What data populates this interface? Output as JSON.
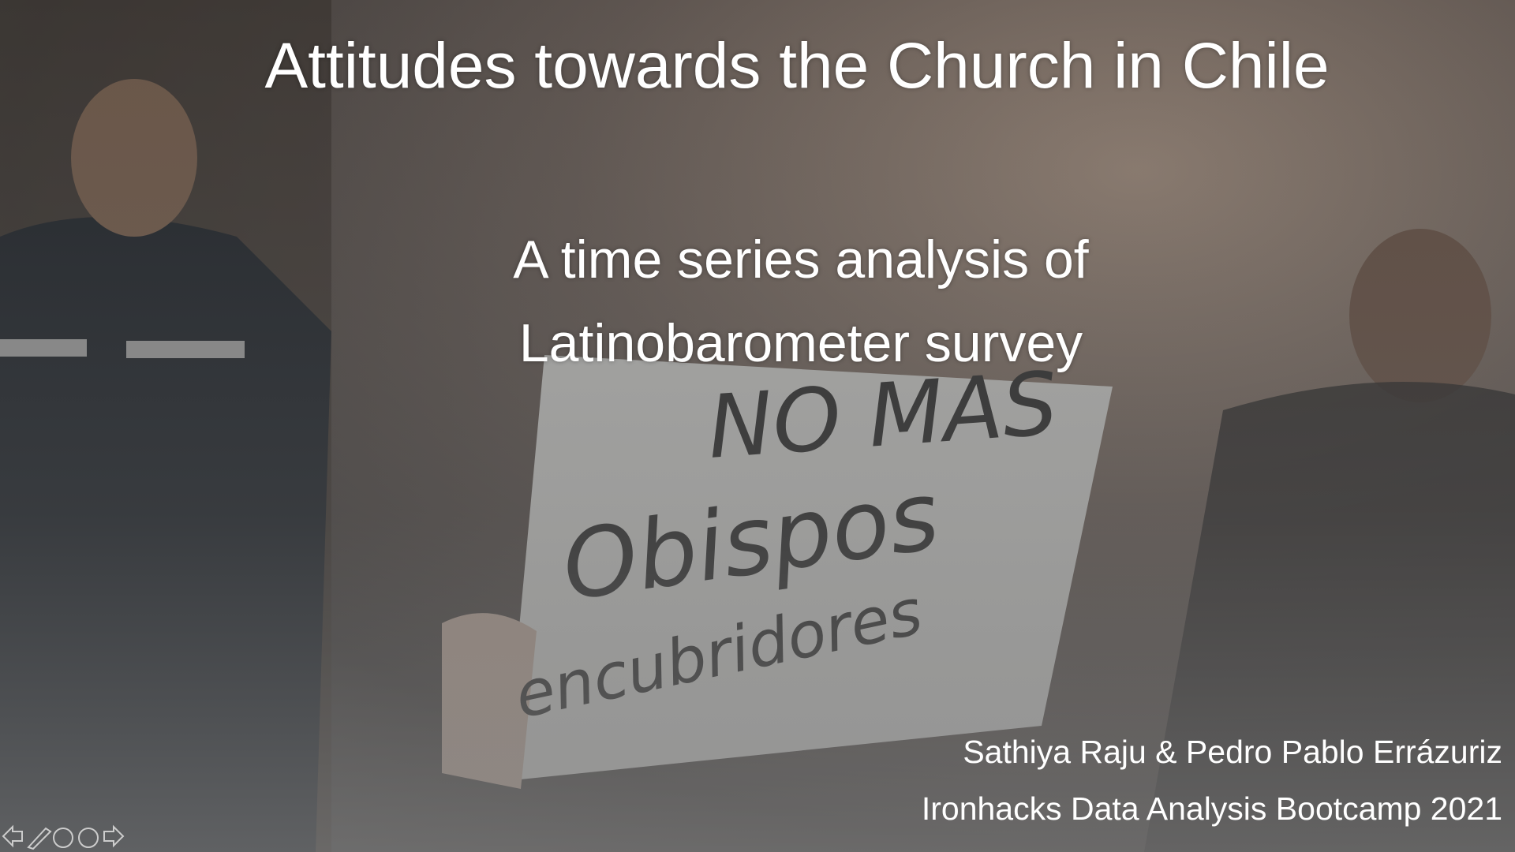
{
  "slide": {
    "title": "Attitudes towards the Church in Chile",
    "subtitle": "A time series analysis of Latinobarometer survey",
    "authors": "Sathiya Raju & Pedro Pablo Errázuriz",
    "event": "Ironhacks Data Analysis Bootcamp 2021",
    "sign": [
      "NO MAS",
      "Obispos",
      "encubridores"
    ]
  }
}
